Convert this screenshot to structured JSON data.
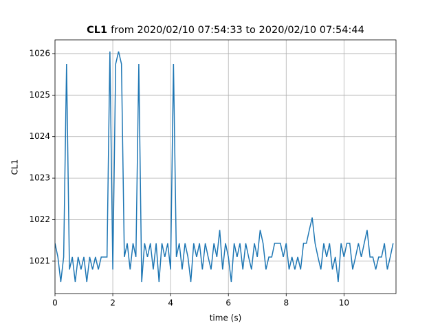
{
  "chart_data": {
    "type": "line",
    "title_bold": "CL1",
    "title_rest": "from 2020/02/10 07:54:33 to 2020/02/10 07:54:44",
    "xlabel": "time (s)",
    "ylabel": "CL1",
    "x": [
      0,
      0.1,
      0.2,
      0.3,
      0.4,
      0.5,
      0.6,
      0.7,
      0.8,
      0.9,
      1,
      1.1,
      1.2,
      1.3,
      1.4,
      1.5,
      1.6,
      1.7,
      1.8,
      1.9,
      2,
      2.1,
      2.2,
      2.3,
      2.4,
      2.5,
      2.6,
      2.7,
      2.8,
      2.9,
      3,
      3.1,
      3.2,
      3.3,
      3.4,
      3.5,
      3.6,
      3.7,
      3.8,
      3.9,
      4,
      4.1,
      4.2,
      4.3,
      4.4,
      4.5,
      4.6,
      4.7,
      4.8,
      4.9,
      5,
      5.1,
      5.2,
      5.3,
      5.4,
      5.5,
      5.6,
      5.7,
      5.8,
      5.9,
      6,
      6.1,
      6.2,
      6.3,
      6.4,
      6.5,
      6.6,
      6.7,
      6.8,
      6.9,
      7,
      7.1,
      7.2,
      7.3,
      7.4,
      7.5,
      7.6,
      7.7,
      7.8,
      7.9,
      8,
      8.1,
      8.2,
      8.3,
      8.4,
      8.5,
      8.6,
      8.7,
      8.8,
      8.9,
      9,
      9.1,
      9.2,
      9.3,
      9.4,
      9.5,
      9.6,
      9.7,
      9.8,
      9.9,
      10,
      10.1,
      10.2,
      10.3,
      10.4,
      10.5,
      10.6,
      10.7,
      10.8,
      10.9,
      11,
      11.1,
      11.2,
      11.3,
      11.4,
      11.5,
      11.6,
      11.7
    ],
    "series": [
      {
        "name": "CL1",
        "color": "#1f77b4",
        "values": [
          1021.43,
          1021.1,
          1020.5,
          1021.1,
          1025.75,
          1020.8,
          1021.1,
          1020.5,
          1021.1,
          1020.8,
          1021.1,
          1020.5,
          1021.1,
          1020.8,
          1021.1,
          1020.8,
          1021.1,
          1021.1,
          1021.1,
          1026.05,
          1020.8,
          1025.75,
          1026.05,
          1025.75,
          1021.1,
          1021.43,
          1020.8,
          1021.43,
          1021.1,
          1025.75,
          1020.5,
          1021.43,
          1021.1,
          1021.43,
          1020.8,
          1021.43,
          1020.5,
          1021.43,
          1021.1,
          1021.43,
          1020.8,
          1025.75,
          1021.1,
          1021.43,
          1020.8,
          1021.43,
          1021.1,
          1020.5,
          1021.43,
          1021.1,
          1021.43,
          1020.8,
          1021.43,
          1021.1,
          1020.8,
          1021.43,
          1021.1,
          1021.75,
          1020.8,
          1021.43,
          1021.1,
          1020.5,
          1021.43,
          1021.1,
          1021.43,
          1020.8,
          1021.43,
          1021.1,
          1020.8,
          1021.43,
          1021.1,
          1021.75,
          1021.43,
          1020.8,
          1021.1,
          1021.1,
          1021.43,
          1021.43,
          1021.43,
          1021.1,
          1021.43,
          1020.8,
          1021.1,
          1020.8,
          1021.1,
          1020.8,
          1021.43,
          1021.43,
          1021.75,
          1022.05,
          1021.43,
          1021.1,
          1020.8,
          1021.43,
          1021.1,
          1021.43,
          1020.8,
          1021.1,
          1020.5,
          1021.43,
          1021.1,
          1021.43,
          1021.43,
          1020.8,
          1021.1,
          1021.43,
          1021.1,
          1021.43,
          1021.75,
          1021.1,
          1021.1,
          1020.8,
          1021.1,
          1021.1,
          1021.43,
          1020.8,
          1021.1,
          1021.43
        ]
      }
    ],
    "xlim": [
      0,
      11.8
    ],
    "ylim": [
      1020.22,
      1026.33
    ],
    "xticks": [
      0,
      2,
      4,
      6,
      8,
      10
    ],
    "yticks": [
      1021,
      1022,
      1023,
      1024,
      1025,
      1026
    ],
    "grid": true
  }
}
